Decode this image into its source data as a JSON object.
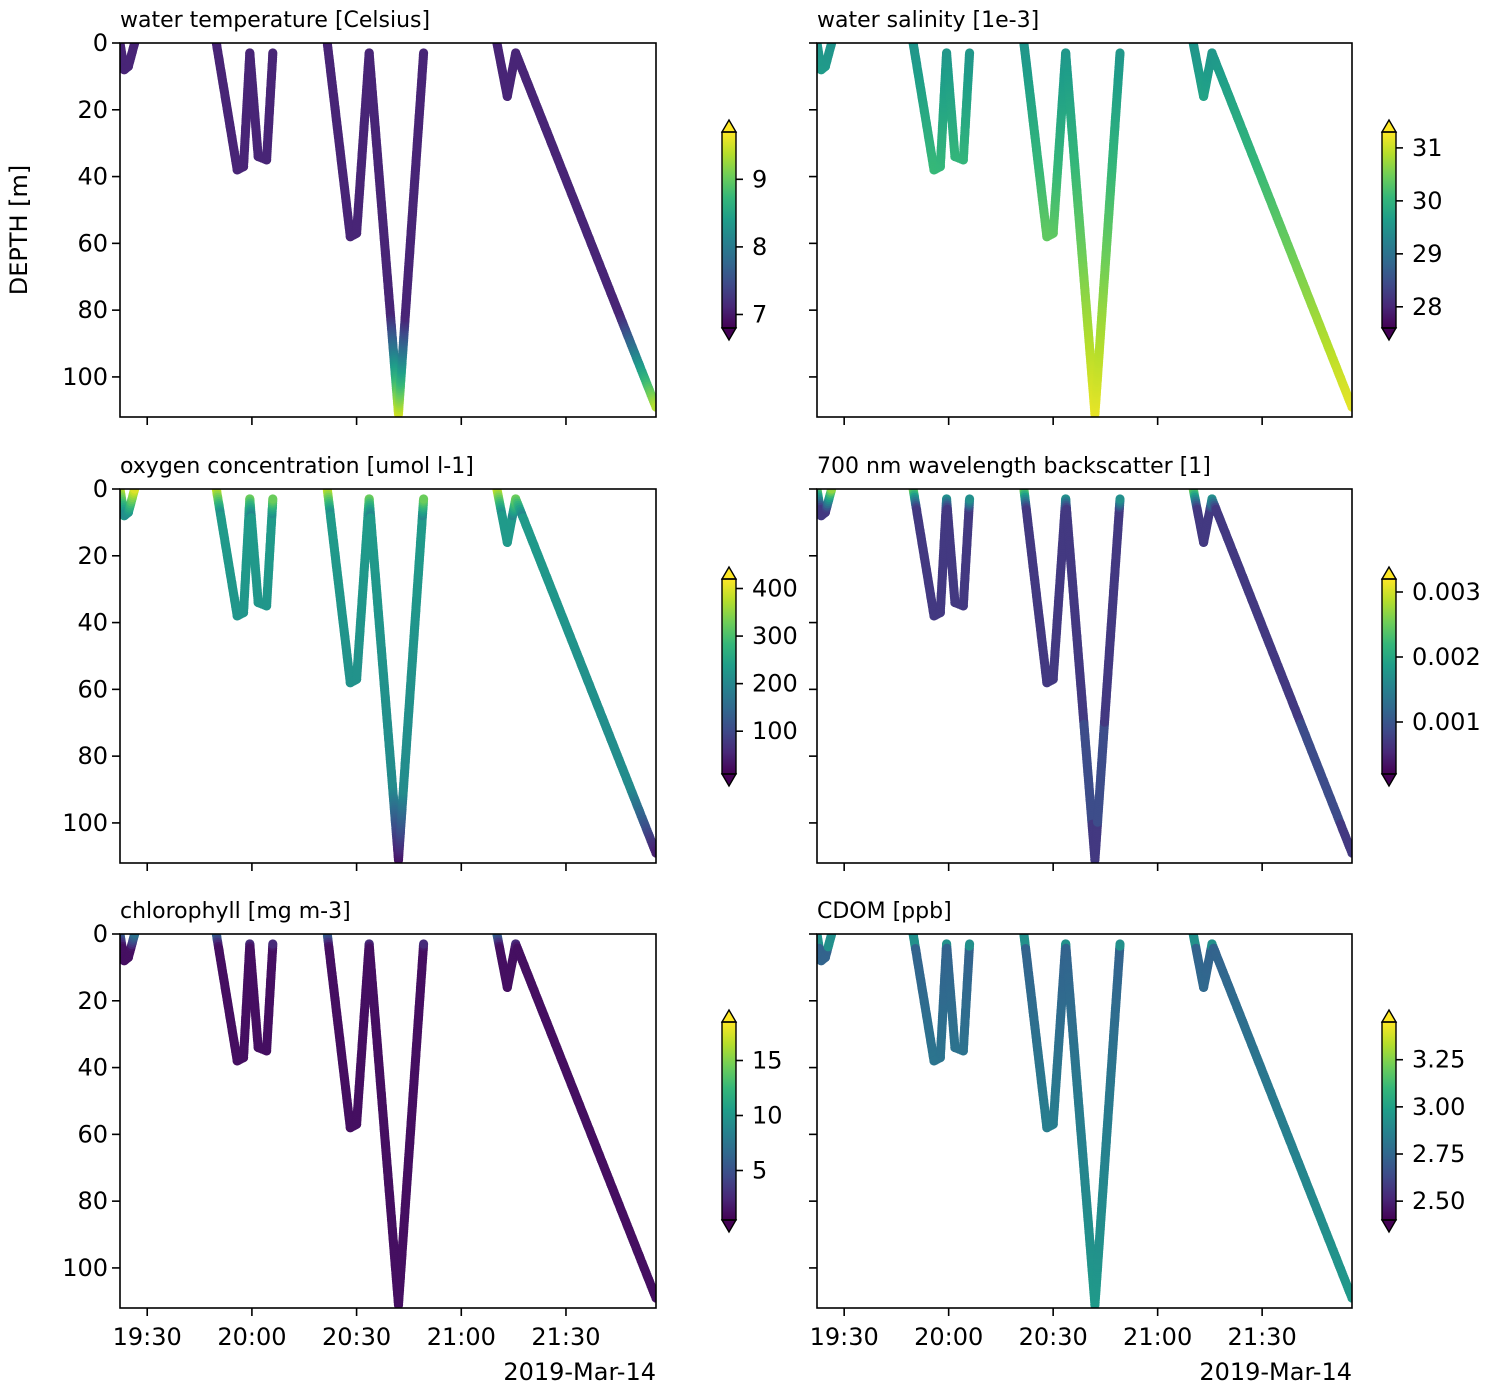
{
  "colormap": {
    "name": "viridis",
    "stops": [
      "#440154",
      "#482878",
      "#3e4a89",
      "#31688e",
      "#26828e",
      "#1f9e89",
      "#35b779",
      "#6ece58",
      "#b5de2b",
      "#fde725"
    ]
  },
  "chart_data": {
    "type": "scatter",
    "layout": "3x2 grid, shared x (time) and shared y (depth, inverted)",
    "shared": {
      "ylabel": "DEPTH [m]",
      "ylim": [
        112,
        0
      ],
      "yticks": [
        0,
        20,
        40,
        60,
        80,
        100
      ],
      "xlim_hours": [
        19.37,
        21.93
      ],
      "xticks_hours": [
        19.5,
        20.0,
        20.5,
        21.0,
        21.5
      ],
      "xticklabels": [
        "19:30",
        "20:00",
        "20:30",
        "21:00",
        "21:30"
      ],
      "xdate_label": "2019-Mar-14"
    },
    "track": {
      "description": "Glider dive/climb profiles: time (decimal hours) vs depth (m)",
      "segments": [
        {
          "time": [
            19.37,
            19.39,
            19.41,
            19.44
          ],
          "depth": [
            0,
            8,
            7,
            0
          ]
        },
        {
          "time": [
            19.83,
            19.93,
            19.96,
            19.99,
            20.03,
            20.07,
            20.1
          ],
          "depth": [
            0,
            38,
            37,
            3,
            34,
            35,
            3
          ]
        },
        {
          "time": [
            20.36,
            20.47,
            20.5,
            20.56,
            20.7,
            20.82
          ],
          "depth": [
            0,
            58,
            57,
            3,
            111,
            3
          ]
        },
        {
          "time": [
            21.17,
            21.22,
            21.26,
            21.93
          ],
          "depth": [
            0,
            16,
            3,
            109
          ]
        }
      ]
    },
    "panels": [
      {
        "title": "water temperature [Celsius]",
        "colorbar": {
          "min": 6.8,
          "max": 9.7,
          "ticks": [
            7,
            8,
            9
          ],
          "ticklabels": [
            "7",
            "8",
            "9"
          ]
        }
      },
      {
        "title": "water salinity [1e-3]",
        "colorbar": {
          "min": 27.6,
          "max": 31.3,
          "ticks": [
            28,
            29,
            30,
            31
          ],
          "ticklabels": [
            "28",
            "29",
            "30",
            "31"
          ]
        }
      },
      {
        "title": "oxygen concentration [umol l-1]",
        "colorbar": {
          "min": 10,
          "max": 420,
          "ticks": [
            100,
            200,
            300,
            400
          ],
          "ticklabels": [
            "100",
            "200",
            "300",
            "400"
          ]
        }
      },
      {
        "title": "700 nm wavelength backscatter [1]",
        "colorbar": {
          "min": 0.0002,
          "max": 0.0032,
          "ticks": [
            0.001,
            0.002,
            0.003
          ],
          "ticklabels": [
            "0.001",
            "0.002",
            "0.003"
          ]
        }
      },
      {
        "title": "chlorophyll [mg m-3]",
        "colorbar": {
          "min": 0.5,
          "max": 18.5,
          "ticks": [
            5,
            10,
            15
          ],
          "ticklabels": [
            "5",
            "10",
            "15"
          ]
        }
      },
      {
        "title": "CDOM [ppb]",
        "colorbar": {
          "min": 2.4,
          "max": 3.45,
          "ticks": [
            2.5,
            2.75,
            3.0,
            3.25
          ],
          "ticklabels": [
            "2.50",
            "2.75",
            "3.00",
            "3.25"
          ]
        }
      }
    ]
  }
}
